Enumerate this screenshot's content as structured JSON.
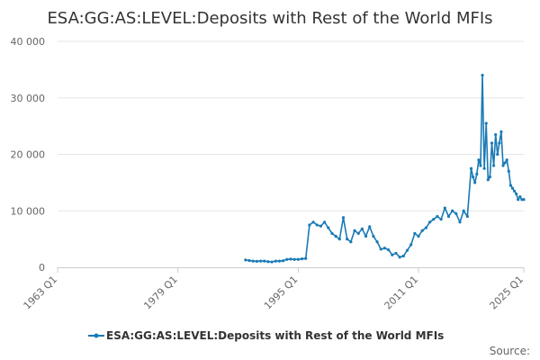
{
  "chart_data": {
    "type": "line",
    "title": "ESA:GG:AS:LEVEL:Deposits with Rest of the World MFIs",
    "xlabel": "",
    "ylabel": "",
    "x_ticks": [
      "1963 Q1",
      "1979 Q1",
      "1995 Q1",
      "2011 Q1",
      "2025 Q1"
    ],
    "y_ticks": [
      "0",
      "10 000",
      "20 000",
      "30 000",
      "40 000"
    ],
    "xlim": [
      1963,
      2025
    ],
    "ylim": [
      0,
      40000
    ],
    "grid": "horizontal",
    "legend_position": "bottom",
    "source_label": "Source:",
    "series": [
      {
        "name": "ESA:GG:AS:LEVEL:Deposits with Rest of the World MFIs",
        "color": "#1a7ab5",
        "x": [
          1988.0,
          1988.5,
          1989.0,
          1989.5,
          1990.0,
          1990.5,
          1991.0,
          1991.5,
          1992.0,
          1992.5,
          1993.0,
          1993.5,
          1994.0,
          1994.5,
          1995.0,
          1995.5,
          1996.0,
          1996.5,
          1997.0,
          1997.5,
          1998.0,
          1998.5,
          1999.0,
          1999.5,
          2000.0,
          2000.5,
          2001.0,
          2001.5,
          2002.0,
          2002.5,
          2003.0,
          2003.5,
          2004.0,
          2004.5,
          2005.0,
          2005.5,
          2006.0,
          2006.5,
          2007.0,
          2007.5,
          2008.0,
          2008.5,
          2009.0,
          2009.5,
          2010.0,
          2010.5,
          2011.0,
          2011.5,
          2012.0,
          2012.5,
          2013.0,
          2013.5,
          2014.0,
          2014.5,
          2015.0,
          2015.5,
          2016.0,
          2016.5,
          2017.0,
          2017.5,
          2018.0,
          2018.25,
          2018.5,
          2018.75,
          2019.0,
          2019.25,
          2019.5,
          2019.75,
          2020.0,
          2020.25,
          2020.5,
          2020.75,
          2021.0,
          2021.25,
          2021.5,
          2021.75,
          2022.0,
          2022.25,
          2022.5,
          2022.75,
          2023.0,
          2023.25,
          2023.5,
          2023.75,
          2024.0,
          2024.25,
          2024.5,
          2024.75,
          2025.0
        ],
        "values": [
          1300,
          1200,
          1100,
          1050,
          1100,
          1100,
          1000,
          950,
          1100,
          1100,
          1150,
          1400,
          1450,
          1400,
          1400,
          1500,
          1550,
          7500,
          8000,
          7500,
          7300,
          8000,
          7000,
          6000,
          5500,
          5000,
          8800,
          5000,
          4500,
          6500,
          6000,
          6800,
          5500,
          7200,
          5500,
          4500,
          3200,
          3400,
          3100,
          2200,
          2500,
          1800,
          2000,
          3000,
          4000,
          6000,
          5500,
          6500,
          7000,
          8000,
          8500,
          9000,
          8500,
          10500,
          9000,
          10000,
          9500,
          8000,
          10000,
          9000,
          17500,
          16000,
          15000,
          16500,
          19000,
          18000,
          34000,
          17500,
          25500,
          15500,
          16000,
          22000,
          18000,
          23500,
          20000,
          22000,
          24000,
          18000,
          18500,
          19000,
          17000,
          14500,
          14000,
          13500,
          13000,
          12000,
          12500,
          12000,
          12000
        ]
      }
    ]
  }
}
